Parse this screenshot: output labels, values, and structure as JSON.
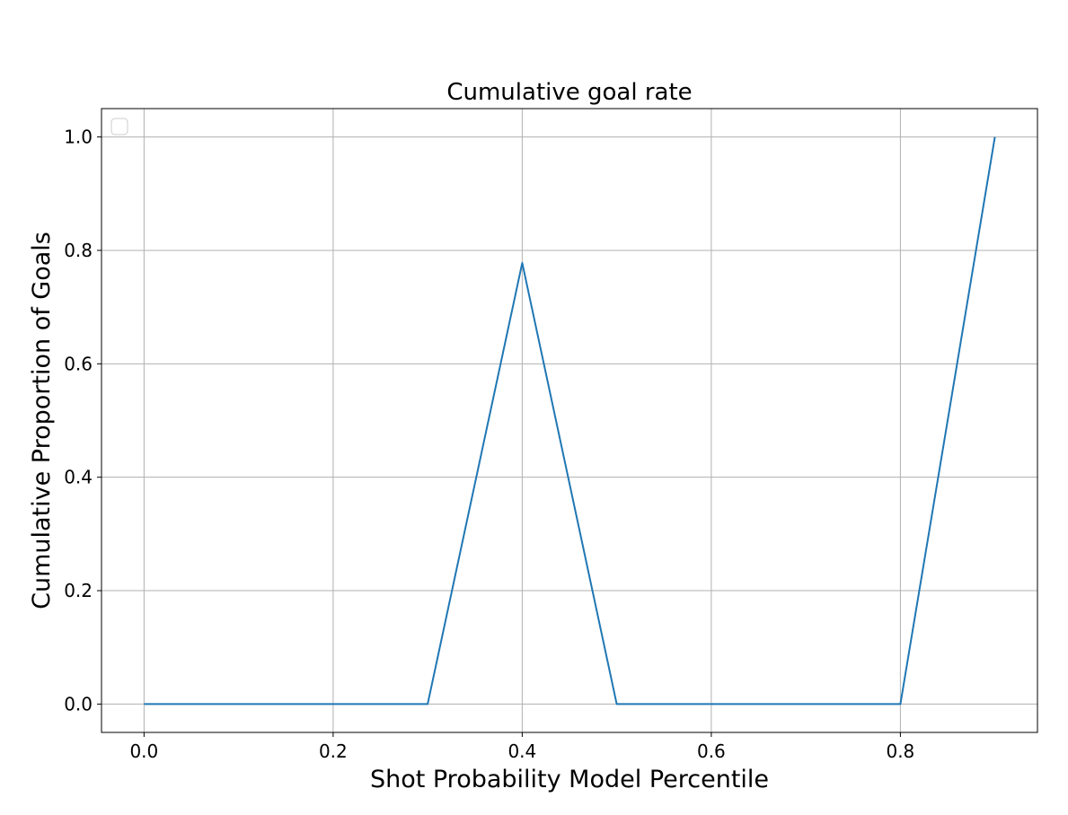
{
  "chart_data": {
    "type": "line",
    "title": "Cumulative goal rate",
    "xlabel": "Shot Probability Model Percentile",
    "ylabel": "Cumulative Proportion of Goals",
    "xlim": [
      -0.045,
      0.945
    ],
    "ylim": [
      -0.05,
      1.05
    ],
    "xticks": [
      0.0,
      0.2,
      0.4,
      0.6,
      0.8
    ],
    "xtick_labels": [
      "0.0",
      "0.2",
      "0.4",
      "0.6",
      "0.8"
    ],
    "yticks": [
      0.0,
      0.2,
      0.4,
      0.6,
      0.8,
      1.0
    ],
    "ytick_labels": [
      "0.0",
      "0.2",
      "0.4",
      "0.6",
      "0.8",
      "1.0"
    ],
    "grid": true,
    "legend": "top-left (empty)",
    "series": [
      {
        "color": "#1f77b4",
        "x": [
          0.0,
          0.1,
          0.2,
          0.3,
          0.4,
          0.5,
          0.6,
          0.7,
          0.8,
          0.9
        ],
        "y": [
          0.0,
          0.0,
          0.0,
          0.0,
          0.778,
          0.0,
          0.0,
          0.0,
          0.0,
          1.0
        ]
      }
    ]
  }
}
